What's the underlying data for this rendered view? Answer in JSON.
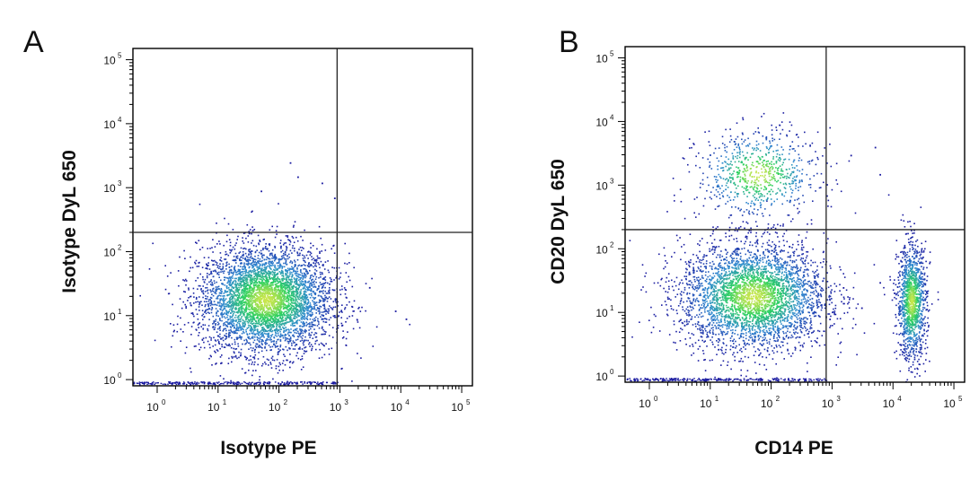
{
  "chart_data": [
    {
      "panel": "A",
      "type": "scatter",
      "xlabel": "Isotype PE",
      "ylabel": "Isotype DyL 650",
      "x_scale": "log",
      "y_scale": "log",
      "xlim": [
        0.4,
        150000
      ],
      "ylim": [
        0.8,
        150000
      ],
      "x_tick_labels": [
        "10^0",
        "10^1",
        "10^2",
        "10^3",
        "10^4",
        "10^5"
      ],
      "y_tick_labels": [
        "10^0",
        "10^1",
        "10^2",
        "10^3",
        "10^4",
        "10^5"
      ],
      "quadrant_gates": {
        "x": 900,
        "y": 200
      },
      "populations": [
        {
          "center": [
            60,
            18
          ],
          "spread_decades": [
            0.55,
            0.42
          ],
          "points": 4500,
          "density": "high"
        }
      ],
      "sparse_points": [
        [
          200,
          1500
        ],
        [
          500,
          1200
        ],
        [
          150,
          2500
        ],
        [
          800,
          700
        ],
        [
          3000,
          28
        ],
        [
          8000,
          12
        ],
        [
          12000,
          9
        ],
        [
          50,
          900
        ]
      ]
    },
    {
      "panel": "B",
      "type": "scatter",
      "xlabel": "CD14 PE",
      "ylabel": "CD20 DyL 650",
      "x_scale": "log",
      "y_scale": "log",
      "xlim": [
        0.4,
        150000
      ],
      "ylim": [
        0.8,
        150000
      ],
      "x_tick_labels": [
        "10^0",
        "10^1",
        "10^2",
        "10^3",
        "10^4",
        "10^5"
      ],
      "y_tick_labels": [
        "10^0",
        "10^1",
        "10^2",
        "10^3",
        "10^4",
        "10^5"
      ],
      "quadrant_gates": {
        "x": 800,
        "y": 200
      },
      "populations": [
        {
          "center": [
            50,
            18
          ],
          "spread_decades": [
            0.6,
            0.42
          ],
          "points": 3600,
          "density": "high"
        },
        {
          "center": [
            60,
            1500
          ],
          "spread_decades": [
            0.5,
            0.35
          ],
          "points": 750,
          "density": "medium"
        },
        {
          "center": [
            20000,
            15
          ],
          "spread_decades": [
            0.12,
            0.45
          ],
          "points": 1300,
          "density": "high"
        }
      ],
      "sparse_points": [
        [
          3000,
          12
        ],
        [
          1500,
          25
        ],
        [
          6000,
          30
        ],
        [
          900,
          8
        ],
        [
          5000,
          4000
        ],
        [
          6000,
          1500
        ],
        [
          2000,
          3000
        ]
      ]
    }
  ],
  "panels": [
    {
      "letter": "A",
      "xlabel": "Isotype PE",
      "ylabel": "Isotype DyL 650"
    },
    {
      "letter": "B",
      "xlabel": "CD14 PE",
      "ylabel": "CD20 DyL 650"
    }
  ],
  "tick_base": "10",
  "tick_exponents": [
    "0",
    "1",
    "2",
    "3",
    "4",
    "5"
  ],
  "colors": {
    "frame": "#000000",
    "gate": "#222222",
    "density_low": "#1a1aa0",
    "density_mid": "#2f8ad0",
    "density_high": "#2ad060",
    "density_peak": "#c8e64a"
  }
}
